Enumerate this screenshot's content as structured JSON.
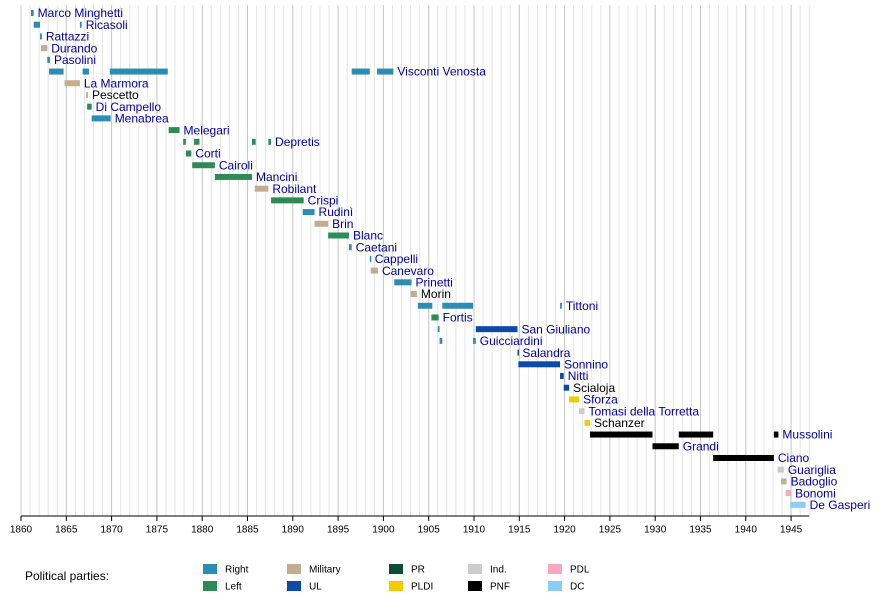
{
  "chart_data": {
    "type": "timeline",
    "xlim": [
      1860,
      1947
    ],
    "xticks": [
      1860,
      1865,
      1870,
      1875,
      1880,
      1885,
      1890,
      1895,
      1900,
      1905,
      1910,
      1915,
      1920,
      1925,
      1930,
      1935,
      1940,
      1945
    ],
    "grid": true,
    "legend": {
      "title": "Political parties:",
      "parties": [
        {
          "name": "Right",
          "color": "#2b8cb4"
        },
        {
          "name": "Left",
          "color": "#2e8b57"
        },
        {
          "name": "Military",
          "color": "#c2ad90"
        },
        {
          "name": "UL",
          "color": "#0a4aa8"
        },
        {
          "name": "PR",
          "color": "#0b4d36"
        },
        {
          "name": "PLDI",
          "color": "#f2cc00"
        },
        {
          "name": "Ind.",
          "color": "#cccccc"
        },
        {
          "name": "PNF",
          "color": "#000000"
        },
        {
          "name": "PDL",
          "color": "#f4a9bd"
        },
        {
          "name": "DC",
          "color": "#8ccdf5"
        }
      ]
    },
    "rows": [
      {
        "name": "Marco Minghetti",
        "color": "#0000a0",
        "segments": [
          {
            "start": 1861.1,
            "end": 1861.4,
            "party": "Right"
          }
        ]
      },
      {
        "name": "Ricasoli",
        "color": "#0000a0",
        "segments": [
          {
            "start": 1861.4,
            "end": 1862.1,
            "party": "Right"
          },
          {
            "start": 1866.5,
            "end": 1866.7,
            "party": "Right"
          }
        ]
      },
      {
        "name": "Rattazzi",
        "color": "#0000a0",
        "segments": [
          {
            "start": 1862.1,
            "end": 1862.3,
            "party": "Right"
          }
        ]
      },
      {
        "name": "Durando",
        "color": "#0000a0",
        "segments": [
          {
            "start": 1862.2,
            "end": 1862.9,
            "party": "Military"
          }
        ]
      },
      {
        "name": "Pasolini",
        "color": "#0000a0",
        "segments": [
          {
            "start": 1862.9,
            "end": 1863.2,
            "party": "Right"
          }
        ]
      },
      {
        "name": "Visconti Venosta",
        "color": "#0000a0",
        "segments": [
          {
            "start": 1863.1,
            "end": 1864.7,
            "party": "Right"
          },
          {
            "start": 1866.8,
            "end": 1867.5,
            "party": "Right"
          },
          {
            "start": 1869.8,
            "end": 1876.2,
            "party": "Right"
          },
          {
            "start": 1896.5,
            "end": 1898.5,
            "party": "Right"
          },
          {
            "start": 1899.3,
            "end": 1901.1,
            "party": "Right"
          }
        ]
      },
      {
        "name": "La Marmora",
        "color": "#0000a0",
        "segments": [
          {
            "start": 1864.8,
            "end": 1866.5,
            "party": "Military"
          }
        ]
      },
      {
        "name": "Pescetto",
        "color": "#000000",
        "segments": [
          {
            "start": 1867.2,
            "end": 1867.4,
            "party": "Military"
          }
        ]
      },
      {
        "name": "Di Campello",
        "color": "#0000a0",
        "segments": [
          {
            "start": 1867.3,
            "end": 1867.8,
            "party": "Left"
          }
        ]
      },
      {
        "name": "Menabrea",
        "color": "#0000a0",
        "segments": [
          {
            "start": 1867.8,
            "end": 1869.9,
            "party": "Right"
          }
        ]
      },
      {
        "name": "Melegari",
        "color": "#0000a0",
        "segments": [
          {
            "start": 1876.3,
            "end": 1877.5,
            "party": "Left"
          }
        ]
      },
      {
        "name": "Depretis",
        "color": "#0000a0",
        "segments": [
          {
            "start": 1877.9,
            "end": 1878.2,
            "party": "Left"
          },
          {
            "start": 1879.1,
            "end": 1879.7,
            "party": "Left"
          },
          {
            "start": 1885.5,
            "end": 1885.9,
            "party": "Left"
          },
          {
            "start": 1887.3,
            "end": 1887.6,
            "party": "Left"
          }
        ]
      },
      {
        "name": "Corti",
        "color": "#0000a0",
        "segments": [
          {
            "start": 1878.2,
            "end": 1878.8,
            "party": "Left"
          }
        ]
      },
      {
        "name": "Cairoli",
        "color": "#0000a0",
        "segments": [
          {
            "start": 1878.9,
            "end": 1881.4,
            "party": "Left"
          }
        ]
      },
      {
        "name": "Mancini",
        "color": "#0000a0",
        "segments": [
          {
            "start": 1881.4,
            "end": 1885.5,
            "party": "Left"
          }
        ]
      },
      {
        "name": "Robilant",
        "color": "#0000a0",
        "segments": [
          {
            "start": 1885.8,
            "end": 1887.3,
            "party": "Military"
          }
        ]
      },
      {
        "name": "Crispi",
        "color": "#0000a0",
        "segments": [
          {
            "start": 1887.6,
            "end": 1891.2,
            "party": "Left"
          }
        ]
      },
      {
        "name": "Rudinì",
        "color": "#0000a0",
        "segments": [
          {
            "start": 1891.1,
            "end": 1892.4,
            "party": "Right"
          }
        ]
      },
      {
        "name": "Brin",
        "color": "#0000a0",
        "segments": [
          {
            "start": 1892.4,
            "end": 1893.9,
            "party": "Military"
          }
        ]
      },
      {
        "name": "Blanc",
        "color": "#0000a0",
        "segments": [
          {
            "start": 1893.9,
            "end": 1896.2,
            "party": "Left"
          }
        ]
      },
      {
        "name": "Caetani",
        "color": "#0000a0",
        "segments": [
          {
            "start": 1896.2,
            "end": 1896.5,
            "party": "Right"
          }
        ]
      },
      {
        "name": "Cappelli",
        "color": "#0000a0",
        "segments": [
          {
            "start": 1898.5,
            "end": 1898.6,
            "party": "Right"
          }
        ]
      },
      {
        "name": "Canevaro",
        "color": "#0000a0",
        "segments": [
          {
            "start": 1898.6,
            "end": 1899.4,
            "party": "Military"
          }
        ]
      },
      {
        "name": "Prinetti",
        "color": "#0000a0",
        "segments": [
          {
            "start": 1901.2,
            "end": 1903.1,
            "party": "Right"
          }
        ]
      },
      {
        "name": "Morin",
        "color": "#000000",
        "segments": [
          {
            "start": 1903.0,
            "end": 1903.7,
            "party": "Military"
          }
        ]
      },
      {
        "name": "Tittoni",
        "color": "#0000a0",
        "segments": [
          {
            "start": 1903.8,
            "end": 1905.4,
            "party": "Right"
          },
          {
            "start": 1906.5,
            "end": 1909.9,
            "party": "Right"
          },
          {
            "start": 1919.5,
            "end": 1919.7,
            "party": "Right"
          }
        ]
      },
      {
        "name": "Fortis",
        "color": "#0000a0",
        "segments": [
          {
            "start": 1905.3,
            "end": 1906.1,
            "party": "Left"
          }
        ]
      },
      {
        "name": "San Giuliano",
        "color": "#0000a0",
        "segments": [
          {
            "start": 1906.0,
            "end": 1906.2,
            "party": "Right"
          },
          {
            "start": 1910.2,
            "end": 1914.8,
            "party": "UL"
          }
        ]
      },
      {
        "name": "Guicciardini",
        "color": "#0000a0",
        "segments": [
          {
            "start": 1906.2,
            "end": 1906.5,
            "party": "Right"
          },
          {
            "start": 1909.9,
            "end": 1910.2,
            "party": "Right"
          }
        ]
      },
      {
        "name": "Salandra",
        "color": "#0000a0",
        "segments": [
          {
            "start": 1914.8,
            "end": 1914.9,
            "party": "UL"
          }
        ]
      },
      {
        "name": "Sonnino",
        "color": "#0000a0",
        "segments": [
          {
            "start": 1914.9,
            "end": 1919.5,
            "party": "UL"
          }
        ]
      },
      {
        "name": "Nitti",
        "color": "#0000a0",
        "segments": [
          {
            "start": 1919.5,
            "end": 1919.9,
            "party": "UL"
          }
        ]
      },
      {
        "name": "Scialoja",
        "color": "#000000",
        "segments": [
          {
            "start": 1919.9,
            "end": 1920.5,
            "party": "UL"
          }
        ]
      },
      {
        "name": "Sforza",
        "color": "#0000a0",
        "segments": [
          {
            "start": 1920.5,
            "end": 1921.6,
            "party": "PLDI"
          }
        ]
      },
      {
        "name": "Tomasi della Torretta",
        "color": "#0000a0",
        "segments": [
          {
            "start": 1921.6,
            "end": 1922.2,
            "party": "Ind."
          }
        ]
      },
      {
        "name": "Schanzer",
        "color": "#000000",
        "segments": [
          {
            "start": 1922.2,
            "end": 1922.8,
            "party": "PLDI"
          }
        ]
      },
      {
        "name": "Mussolini",
        "color": "#0000a0",
        "segments": [
          {
            "start": 1922.8,
            "end": 1929.7,
            "party": "PNF"
          },
          {
            "start": 1932.6,
            "end": 1936.4,
            "party": "PNF"
          },
          {
            "start": 1943.1,
            "end": 1943.6,
            "party": "PNF"
          }
        ]
      },
      {
        "name": "Grandi",
        "color": "#0000a0",
        "segments": [
          {
            "start": 1929.7,
            "end": 1932.6,
            "party": "PNF"
          }
        ]
      },
      {
        "name": "Ciano",
        "color": "#0000a0",
        "segments": [
          {
            "start": 1936.4,
            "end": 1943.1,
            "party": "PNF"
          }
        ]
      },
      {
        "name": "Guariglia",
        "color": "#0000a0",
        "segments": [
          {
            "start": 1943.5,
            "end": 1944.2,
            "party": "Ind."
          }
        ]
      },
      {
        "name": "Badoglio",
        "color": "#0000a0",
        "segments": [
          {
            "start": 1943.9,
            "end": 1944.5,
            "party": "Military"
          }
        ]
      },
      {
        "name": "Bonomi",
        "color": "#0000a0",
        "segments": [
          {
            "start": 1944.4,
            "end": 1945.0,
            "party": "PDL"
          }
        ]
      },
      {
        "name": "De Gasperi",
        "color": "#0000a0",
        "segments": [
          {
            "start": 1944.9,
            "end": 1946.6,
            "party": "DC"
          }
        ]
      }
    ]
  }
}
